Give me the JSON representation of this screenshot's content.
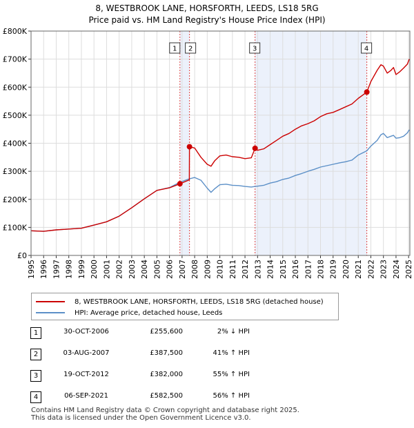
{
  "header": {
    "line1": "8, WESTBROOK LANE, HORSFORTH, LEEDS, LS18 5RG",
    "line2": "Price paid vs. HM Land Registry's House Price Index (HPI)"
  },
  "chart_data": {
    "type": "line",
    "title": "8, WESTBROOK LANE, HORSFORTH, LEEDS, LS18 5RG — Price paid vs. HM Land Registry's House Price Index (HPI)",
    "xlim": [
      1995,
      2025.1
    ],
    "ylim": [
      0,
      800000
    ],
    "x_ticks": [
      "1995",
      "1996",
      "1997",
      "1998",
      "1999",
      "2000",
      "2001",
      "2002",
      "2003",
      "2004",
      "2005",
      "2006",
      "2007",
      "2008",
      "2009",
      "2010",
      "2011",
      "2012",
      "2013",
      "2014",
      "2015",
      "2016",
      "2017",
      "2018",
      "2019",
      "2020",
      "2021",
      "2022",
      "2023",
      "2024",
      "2025"
    ],
    "y_ticks": [
      {
        "value": 0,
        "label": "£0"
      },
      {
        "value": 100000,
        "label": "£100K"
      },
      {
        "value": 200000,
        "label": "£200K"
      },
      {
        "value": 300000,
        "label": "£300K"
      },
      {
        "value": 400000,
        "label": "£400K"
      },
      {
        "value": 500000,
        "label": "£500K"
      },
      {
        "value": 600000,
        "label": "£600K"
      },
      {
        "value": 700000,
        "label": "£700K"
      },
      {
        "value": 800000,
        "label": "£800K"
      }
    ],
    "shaded_periods": [
      [
        2006.83,
        2007.59
      ],
      [
        2012.8,
        2021.68
      ]
    ],
    "series": [
      {
        "name": "8, WESTBROOK LANE, HORSFORTH, LEEDS, LS18 5RG (detached house)",
        "color": "#cc0000",
        "x": [
          1995,
          1996,
          1997,
          1998,
          1999,
          2000,
          2001,
          2002,
          2003,
          2004,
          2005,
          2006,
          2006.83,
          2007.5,
          2007.58,
          2007.59,
          2008,
          2008.5,
          2009,
          2009.3,
          2009.6,
          2010,
          2010.5,
          2011,
          2011.5,
          2012,
          2012.5,
          2012.8,
          2013,
          2013.5,
          2014,
          2014.5,
          2015,
          2015.5,
          2016,
          2016.5,
          2017,
          2017.5,
          2018,
          2018.5,
          2019,
          2019.5,
          2020,
          2020.5,
          2021,
          2021.68,
          2022,
          2022.5,
          2022.8,
          2023,
          2023.3,
          2023.6,
          2023.8,
          2024,
          2024.3,
          2024.6,
          2024.9,
          2025.05
        ],
        "y": [
          88000,
          86000,
          91000,
          94000,
          97000,
          108000,
          120000,
          140000,
          170000,
          202000,
          232000,
          241000,
          255600,
          268000,
          269000,
          387500,
          383000,
          350000,
          325000,
          318000,
          338000,
          355000,
          358000,
          352000,
          350000,
          345000,
          348000,
          382000,
          375000,
          380000,
          395000,
          410000,
          425000,
          435000,
          450000,
          462000,
          470000,
          480000,
          495000,
          505000,
          510000,
          520000,
          530000,
          540000,
          560000,
          582500,
          620000,
          660000,
          680000,
          675000,
          650000,
          660000,
          670000,
          645000,
          655000,
          668000,
          682000,
          700000
        ]
      },
      {
        "name": "HPI: Average price, detached house, Leeds",
        "color": "#5b8fc7",
        "x": [
          1995,
          1996,
          1997,
          1998,
          1999,
          2000,
          2001,
          2002,
          2003,
          2004,
          2005,
          2006,
          2006.83,
          2007.5,
          2008,
          2008.5,
          2009,
          2009.3,
          2009.6,
          2010,
          2010.5,
          2011,
          2011.5,
          2012,
          2012.5,
          2012.8,
          2013,
          2013.5,
          2014,
          2014.5,
          2015,
          2015.5,
          2016,
          2016.5,
          2017,
          2017.5,
          2018,
          2018.5,
          2019,
          2019.5,
          2020,
          2020.5,
          2021,
          2021.68,
          2022,
          2022.5,
          2022.8,
          2023,
          2023.3,
          2023.6,
          2023.8,
          2024,
          2024.3,
          2024.6,
          2024.9,
          2025.05
        ],
        "y": [
          88000,
          86000,
          91000,
          94000,
          97000,
          108000,
          120000,
          140000,
          170000,
          202000,
          232000,
          242000,
          261000,
          272000,
          278000,
          268000,
          240000,
          225000,
          238000,
          252000,
          254000,
          250000,
          249000,
          246000,
          244000,
          246000,
          247000,
          250000,
          258000,
          263000,
          271000,
          276000,
          285000,
          292000,
          300000,
          307000,
          315000,
          320000,
          325000,
          330000,
          334000,
          340000,
          358000,
          373000,
          390000,
          410000,
          430000,
          435000,
          420000,
          425000,
          428000,
          418000,
          420000,
          425000,
          437000,
          448000
        ]
      }
    ],
    "markers": [
      {
        "label": "1",
        "x": 2006.83,
        "y": 255600
      },
      {
        "label": "2",
        "x": 2007.59,
        "y": 387500
      },
      {
        "label": "3",
        "x": 2012.8,
        "y": 382000
      },
      {
        "label": "4",
        "x": 2021.68,
        "y": 582500
      }
    ]
  },
  "legend": {
    "items": [
      {
        "label": "8, WESTBROOK LANE, HORSFORTH, LEEDS, LS18 5RG (detached house)",
        "color": "#cc0000"
      },
      {
        "label": "HPI: Average price, detached house, Leeds",
        "color": "#5b8fc7"
      }
    ]
  },
  "sales": [
    {
      "num": "1",
      "date": "30-OCT-2006",
      "price": "£255,600",
      "hpi": "2% ↓ HPI"
    },
    {
      "num": "2",
      "date": "03-AUG-2007",
      "price": "£387,500",
      "hpi": "41% ↑ HPI"
    },
    {
      "num": "3",
      "date": "19-OCT-2012",
      "price": "£382,000",
      "hpi": "55% ↑ HPI"
    },
    {
      "num": "4",
      "date": "06-SEP-2021",
      "price": "£582,500",
      "hpi": "56% ↑ HPI"
    }
  ],
  "footer": {
    "line1": "Contains HM Land Registry data © Crown copyright and database right 2025.",
    "line2": "This data is licensed under the Open Government Licence v3.0."
  }
}
